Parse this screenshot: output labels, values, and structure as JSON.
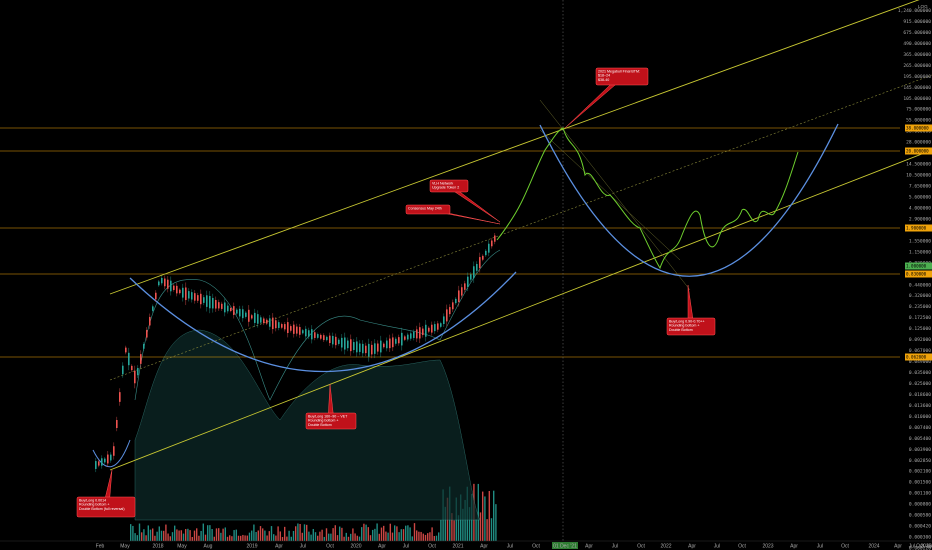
{
  "chart_data": {
    "type": "candlestick",
    "y_scale": "log",
    "scale_label": "LOG",
    "grid": false,
    "x_axis_labels": [
      "Feb",
      "May",
      "2018",
      "May",
      "Aug",
      "2019",
      "Apr",
      "Jul",
      "Oct",
      "2020",
      "Apr",
      "Jul",
      "Oct",
      "2021",
      "Apr",
      "Jul",
      "Oct",
      "01 Dec '21",
      "Apr",
      "Jul",
      "Oct",
      "2022",
      "Apr",
      "Jul",
      "Oct",
      "2023",
      "Apr",
      "Jul",
      "Oct",
      "2024",
      "Apr",
      "Jul",
      "Oct",
      "2025",
      "Apr"
    ],
    "highlighted_x_label": "01 Dec '21",
    "y_ticks": [
      "1,240.000000",
      "915.000000",
      "675.000000",
      "490.000000",
      "365.000000",
      "265.000000",
      "195.000000",
      "145.000000",
      "105.000000",
      "75.000000",
      "55.000000",
      "38.000000",
      "28.000000",
      "19.500000",
      "14.500000",
      "10.500000",
      "7.650000",
      "5.600000",
      "4.000000",
      "2.900000",
      "2.150000",
      "1.550000",
      "1.150000",
      "0.830000",
      "0.610000",
      "0.440000",
      "0.320000",
      "0.235000",
      "0.172500",
      "0.125000",
      "0.092000",
      "0.067000",
      "0.049000",
      "0.035000",
      "0.025000",
      "0.018600",
      "0.013600",
      "0.010000",
      "0.007400",
      "0.005400",
      "0.003900",
      "0.002850",
      "0.002100",
      "0.001500",
      "0.001100",
      "0.000800",
      "0.000580",
      "0.000420",
      "0.000300",
      "0.000220"
    ],
    "price_tags": [
      {
        "label": "38.000000",
        "color": "#f0a30a"
      },
      {
        "label": "20.000000",
        "color": "#f0a30a"
      },
      {
        "label": "1.900000",
        "color": "#f0a30a"
      },
      {
        "label": "1.000000",
        "color": "#4caf50"
      },
      {
        "label": "0.830000",
        "color": "#f0a30a"
      },
      {
        "label": "0.062000",
        "color": "#f0a30a"
      }
    ],
    "annotations": [
      {
        "lines": [
          "Buy/Long 0.0014",
          "Rounding bottom +",
          "Double Bottom (full reversal)"
        ]
      },
      {
        "lines": [
          "Buy/Long 160~90 ~ VET",
          "Rounding bottom +",
          "Double Bottom"
        ]
      },
      {
        "lines": [
          "Consensus May 24th"
        ]
      },
      {
        "lines": [
          "VLH Network",
          "Upgrade Token 2"
        ]
      },
      {
        "lines": [
          "2021 Megabull Final BTM:",
          "$18~24",
          "$38-40"
        ]
      },
      {
        "lines": [
          "Buy/Long 0.90-0.70++",
          "Rounding bottom +",
          "Double Bottom"
        ]
      }
    ],
    "series": [
      {
        "name": "",
        "color": "#26a69a"
      },
      {
        "name": "",
        "color": "#ef5350"
      }
    ],
    "colors": {
      "channel": "#c8c832",
      "curve": "#5b8fe0",
      "projection": "#6ecf2e",
      "level_line": "#f0a30a",
      "callout_fill": "#c0111a",
      "callout_border": "#ff5252"
    }
  }
}
